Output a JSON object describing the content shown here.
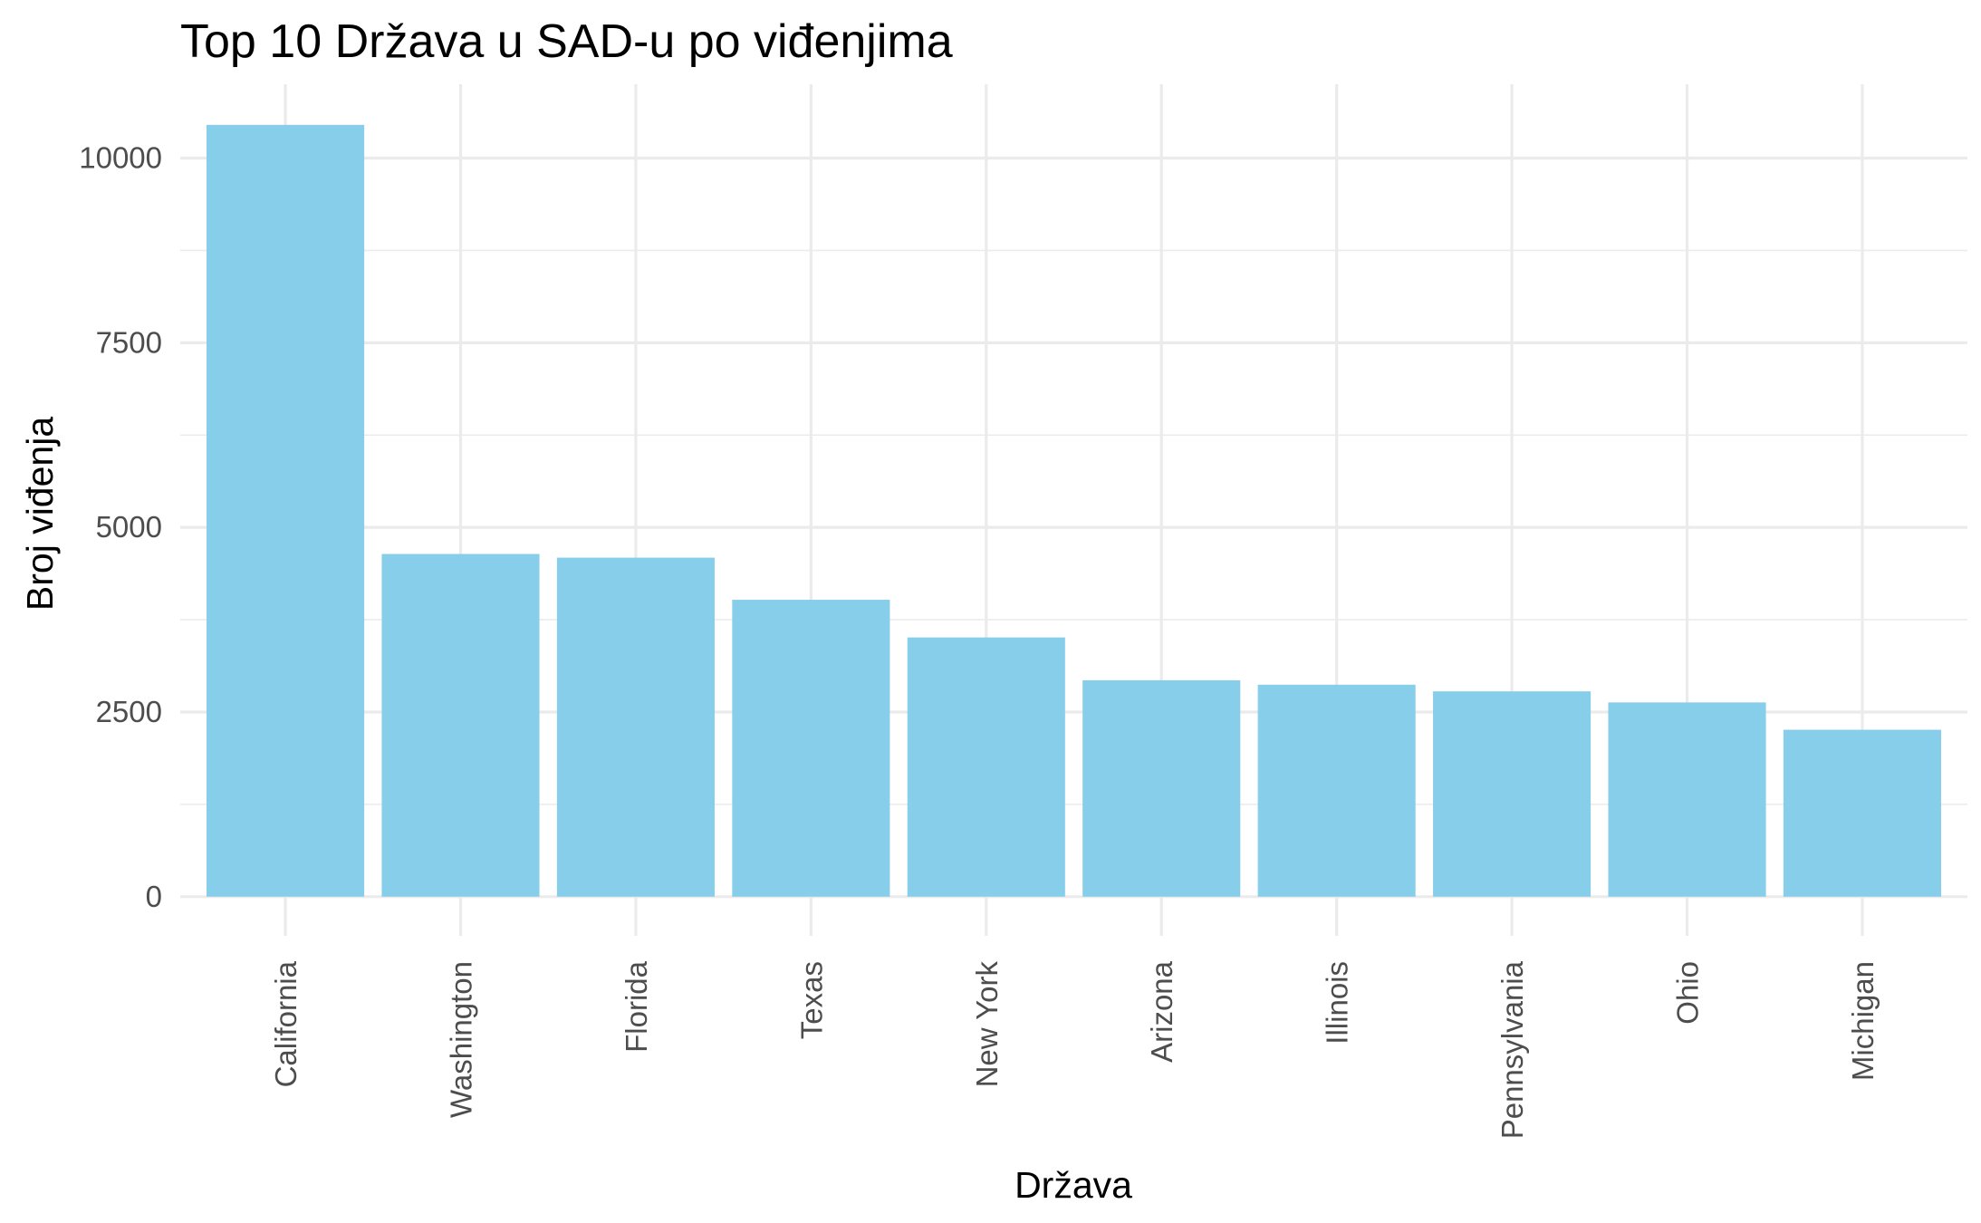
{
  "chart_data": {
    "type": "bar",
    "title": "Top 10 Država u SAD-u po viđenjima",
    "xlabel": "Država",
    "ylabel": "Broj viđenja",
    "categories": [
      "California",
      "Washington",
      "Florida",
      "Texas",
      "New York",
      "Arizona",
      "Illinois",
      "Pennsylvania",
      "Ohio",
      "Michigan"
    ],
    "values": [
      10450,
      4640,
      4590,
      4020,
      3510,
      2930,
      2870,
      2780,
      2630,
      2260
    ],
    "yticks": [
      0,
      2500,
      5000,
      7500,
      10000
    ],
    "ylim": [
      -530,
      11000
    ],
    "grid": true,
    "legend": "none",
    "bar_color": "#87CEEB",
    "grid_color": "#EBEBEB"
  }
}
